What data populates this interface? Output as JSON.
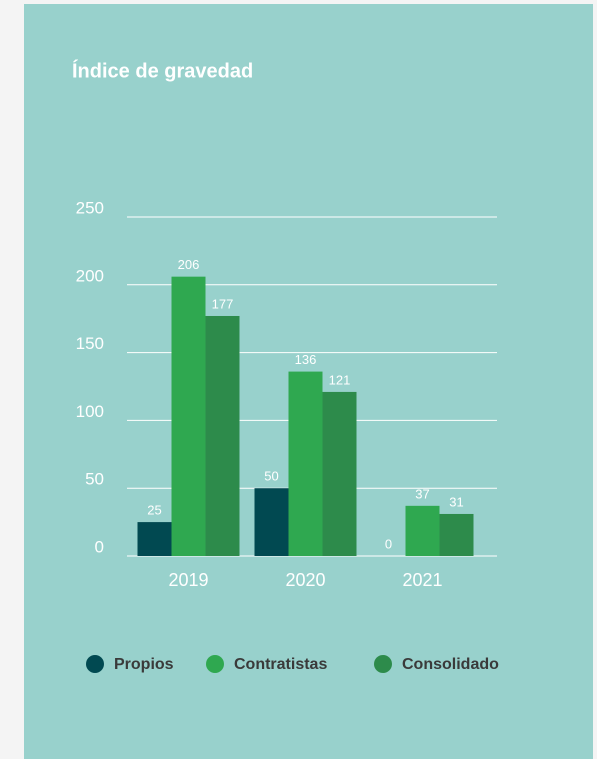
{
  "chart_data": {
    "type": "bar",
    "title": "Índice de gravedad",
    "categories": [
      "2019",
      "2020",
      "2021"
    ],
    "series": [
      {
        "name": "Propios",
        "color": "#014951",
        "values": [
          25,
          50,
          0
        ]
      },
      {
        "name": "Contratistas",
        "color": "#2fa850",
        "values": [
          206,
          136,
          37
        ]
      },
      {
        "name": "Consolidado",
        "color": "#2d8b4b",
        "values": [
          177,
          121,
          31
        ]
      }
    ],
    "ylim": [
      0,
      250
    ],
    "yticks": [
      0,
      50,
      100,
      150,
      200,
      250
    ],
    "grid": true,
    "legend": "bottom"
  }
}
